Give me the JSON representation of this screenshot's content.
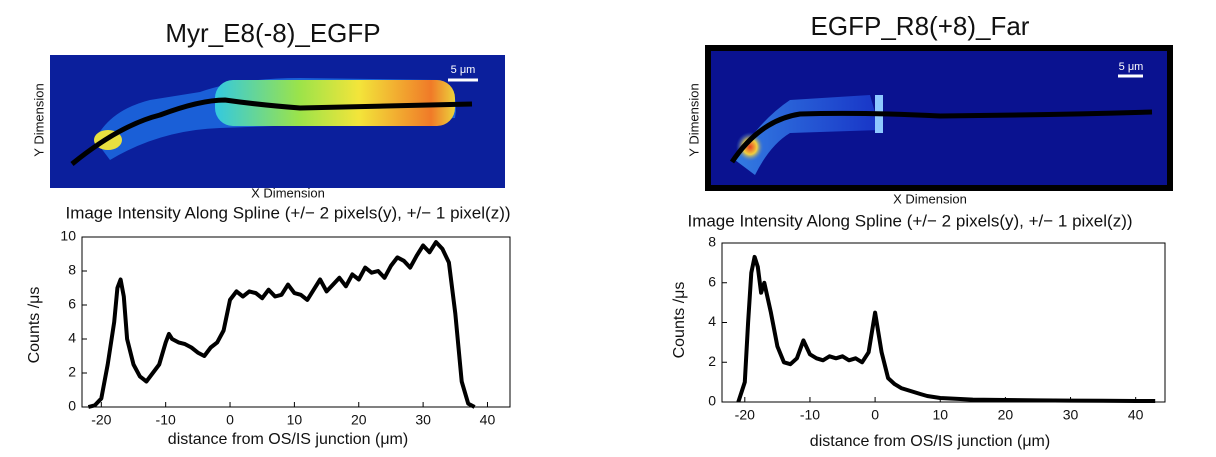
{
  "chart_data": [
    {
      "type": "line",
      "title": "Myr_E8(-8)_EGFP",
      "image_xlabel": "X Dimension",
      "image_ylabel": "Y Dimension",
      "scale_bar": "5 μm",
      "subtitle": "Image Intensity Along Spline (+/− 2 pixels(y), +/− 1 pixel(z))",
      "xlabel": "distance from OS/IS junction (μm)",
      "ylabel": "Counts /μs",
      "color": "#000000",
      "xlim": [
        -23,
        43.5
      ],
      "ylim": [
        0,
        10
      ],
      "xticks": [
        -20,
        -10,
        0,
        10,
        20,
        30,
        40
      ],
      "yticks": [
        0,
        2,
        4,
        6,
        8,
        10
      ],
      "x": [
        -22,
        -21,
        -20,
        -19,
        -18,
        -17.5,
        -17,
        -16.5,
        -16,
        -15,
        -14,
        -13,
        -12,
        -11,
        -10,
        -9.5,
        -9,
        -8,
        -7,
        -6,
        -5,
        -4,
        -3,
        -2,
        -1,
        0,
        1,
        2,
        3,
        4,
        5,
        6,
        7,
        8,
        9,
        10,
        11,
        12,
        13,
        14,
        15,
        16,
        17,
        18,
        19,
        20,
        21,
        22,
        23,
        24,
        25,
        26,
        27,
        28,
        29,
        30,
        31,
        32,
        33,
        34,
        35,
        36,
        37,
        38
      ],
      "values": [
        0,
        0.1,
        0.5,
        2.5,
        5.0,
        7.0,
        7.5,
        6.5,
        4.0,
        2.5,
        1.8,
        1.5,
        2.0,
        2.5,
        3.8,
        4.3,
        4.0,
        3.8,
        3.7,
        3.5,
        3.2,
        3.0,
        3.5,
        3.8,
        4.5,
        6.3,
        6.8,
        6.5,
        6.8,
        6.7,
        6.4,
        6.9,
        6.5,
        6.6,
        7.2,
        6.7,
        6.6,
        6.3,
        6.9,
        7.5,
        6.8,
        7.2,
        7.6,
        7.1,
        7.8,
        7.5,
        8.2,
        7.9,
        8.0,
        7.6,
        8.3,
        8.8,
        8.6,
        8.2,
        8.9,
        9.5,
        9.1,
        9.7,
        9.3,
        8.5,
        5.5,
        1.5,
        0.2,
        0
      ]
    },
    {
      "type": "line",
      "title": "EGFP_R8(+8)_Far",
      "image_xlabel": "X Dimension",
      "image_ylabel": "Y Dimension",
      "scale_bar": "5 μm",
      "subtitle": "Image Intensity Along Spline (+/− 2 pixels(y), +/− 1 pixel(z))",
      "xlabel": "distance from OS/IS junction (μm)",
      "ylabel": "Counts /μs",
      "color": "#000000",
      "xlim": [
        -23.5,
        44.5
      ],
      "ylim": [
        0,
        8
      ],
      "xticks": [
        -20,
        -10,
        0,
        10,
        20,
        30,
        40
      ],
      "yticks": [
        0,
        2,
        4,
        6,
        8
      ],
      "x": [
        -21,
        -20,
        -19.5,
        -19,
        -18.5,
        -18,
        -17.5,
        -17,
        -16,
        -15,
        -14,
        -13,
        -12,
        -11,
        -10,
        -9,
        -8,
        -7,
        -6,
        -5,
        -4,
        -3,
        -2,
        -1,
        0,
        1,
        2,
        3,
        4,
        5,
        6,
        7,
        8,
        10,
        15,
        20,
        25,
        30,
        35,
        40,
        43
      ],
      "values": [
        0,
        1,
        4,
        6.5,
        7.3,
        6.8,
        5.5,
        6.0,
        4.5,
        2.8,
        2.0,
        1.9,
        2.2,
        3.1,
        2.4,
        2.2,
        2.1,
        2.3,
        2.2,
        2.3,
        2.1,
        2.2,
        2.0,
        2.5,
        4.5,
        2.5,
        1.2,
        0.9,
        0.7,
        0.6,
        0.5,
        0.4,
        0.3,
        0.2,
        0.12,
        0.1,
        0.08,
        0.07,
        0.06,
        0.05,
        0.05
      ]
    }
  ]
}
